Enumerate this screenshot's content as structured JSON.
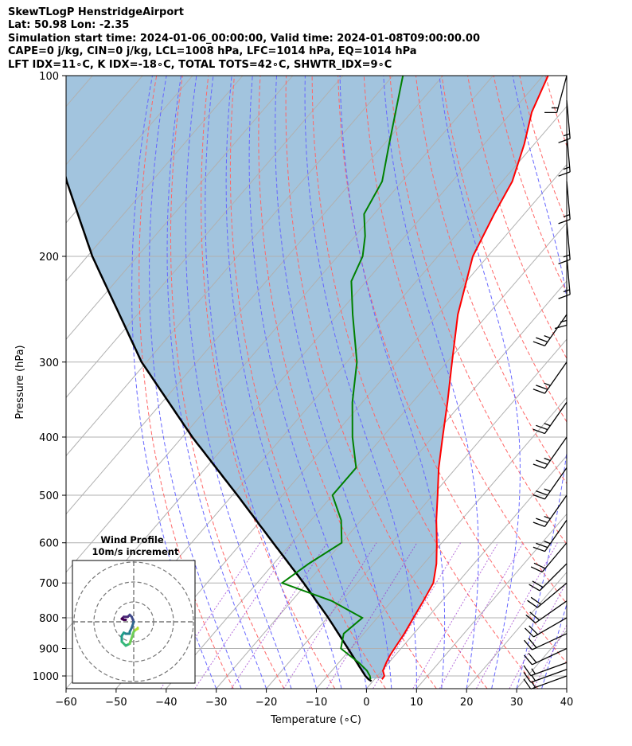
{
  "header": {
    "line1": "SkewTLogP HenstridgeAirport",
    "line2": "Lat: 50.98   Lon: -2.35",
    "line3": "Simulation start time: 2024-01-06_00:00:00, Valid time: 2024-01-08T09:00:00.00",
    "line4": "CAPE=0 j/kg, CIN=0 j/kg, LCL=1008 hPa, LFC=1014 hPa, EQ=1014 hPa",
    "line5": "LFT IDX=11∘C, K IDX=-18∘C, TOTAL TOTS=42∘C, SHWTR_IDX=9∘C"
  },
  "chart_data": {
    "type": "skewt",
    "xlabel": "Temperature (∘C)",
    "ylabel": "Pressure (hPa)",
    "xlim": [
      -60,
      40
    ],
    "ylim": [
      1050,
      100
    ],
    "x_ticks": [
      -60,
      -50,
      -40,
      -30,
      -20,
      -10,
      0,
      10,
      20,
      30,
      40
    ],
    "x_tick_labels": [
      "−60",
      "−50",
      "−40",
      "−30",
      "−20",
      "−10",
      "0",
      "10",
      "20",
      "30",
      "40"
    ],
    "y_ticks": [
      1000,
      900,
      800,
      700,
      600,
      500,
      400,
      300,
      200,
      100
    ],
    "y_tick_labels": [
      "1000",
      "900",
      "800",
      "700",
      "600",
      "500",
      "400",
      "300",
      "200",
      "100"
    ],
    "colors": {
      "temperature": "#ff0000",
      "dewpoint": "#008000",
      "parcel": "#000000",
      "fill": "#a2c4de",
      "dry_adiabat": "#ff6666",
      "moist_adiabat": "#6666ff",
      "mixing_ratio": "#9933cc",
      "isotherm": "#b0b0b0"
    },
    "temperature_profile": [
      [
        1013,
        1.5
      ],
      [
        1000,
        1.4
      ],
      [
        980,
        0.2
      ],
      [
        950,
        -0.5
      ],
      [
        925,
        -1.0
      ],
      [
        900,
        -1.3
      ],
      [
        850,
        -1.9
      ],
      [
        800,
        -2.8
      ],
      [
        750,
        -3.7
      ],
      [
        700,
        -4.8
      ],
      [
        650,
        -7.5
      ],
      [
        600,
        -11.0
      ],
      [
        550,
        -15.0
      ],
      [
        500,
        -19.0
      ],
      [
        450,
        -23.5
      ],
      [
        400,
        -28.0
      ],
      [
        350,
        -33.0
      ],
      [
        300,
        -39.0
      ],
      [
        250,
        -46.0
      ],
      [
        200,
        -53.0
      ],
      [
        170,
        -56.0
      ],
      [
        150,
        -58.0
      ],
      [
        130,
        -62.0
      ],
      [
        115,
        -66.0
      ],
      [
        100,
        -69.0
      ]
    ],
    "dewpoint_profile": [
      [
        1013,
        -0.8
      ],
      [
        1000,
        -1.5
      ],
      [
        980,
        -3.0
      ],
      [
        950,
        -6.0
      ],
      [
        925,
        -9.0
      ],
      [
        900,
        -12.0
      ],
      [
        850,
        -14.0
      ],
      [
        800,
        -13.0
      ],
      [
        750,
        -22.0
      ],
      [
        700,
        -35.0
      ],
      [
        650,
        -33.0
      ],
      [
        600,
        -30.0
      ],
      [
        550,
        -34.0
      ],
      [
        500,
        -40.0
      ],
      [
        450,
        -40.0
      ],
      [
        400,
        -46.0
      ],
      [
        350,
        -52.0
      ],
      [
        300,
        -58.0
      ],
      [
        250,
        -67.0
      ],
      [
        220,
        -73.0
      ],
      [
        200,
        -75.0
      ],
      [
        185,
        -78.0
      ],
      [
        170,
        -82.0
      ],
      [
        150,
        -84.0
      ],
      [
        130,
        -89.0
      ],
      [
        100,
        -98.0
      ]
    ],
    "parcel_profile": [
      [
        1020,
        -0.3
      ],
      [
        1013,
        -1.2
      ],
      [
        1000,
        -2.4
      ],
      [
        900,
        -10.6
      ],
      [
        800,
        -19.8
      ],
      [
        700,
        -30.7
      ],
      [
        600,
        -43.7
      ],
      [
        500,
        -59.0
      ],
      [
        400,
        -78.0
      ],
      [
        300,
        -101.0
      ],
      [
        200,
        -129.0
      ],
      [
        150,
        -147.0
      ],
      [
        100,
        -170.0
      ]
    ],
    "wind_barbs": [
      {
        "p": 1000,
        "speed_kt": 15,
        "dir": 250
      },
      {
        "p": 975,
        "speed_kt": 15,
        "dir": 250
      },
      {
        "p": 950,
        "speed_kt": 15,
        "dir": 250
      },
      {
        "p": 900,
        "speed_kt": 20,
        "dir": 245
      },
      {
        "p": 850,
        "speed_kt": 20,
        "dir": 245
      },
      {
        "p": 800,
        "speed_kt": 20,
        "dir": 240
      },
      {
        "p": 750,
        "speed_kt": 20,
        "dir": 235
      },
      {
        "p": 700,
        "speed_kt": 20,
        "dir": 230
      },
      {
        "p": 650,
        "speed_kt": 20,
        "dir": 225
      },
      {
        "p": 600,
        "speed_kt": 20,
        "dir": 220
      },
      {
        "p": 550,
        "speed_kt": 25,
        "dir": 215
      },
      {
        "p": 500,
        "speed_kt": 25,
        "dir": 215
      },
      {
        "p": 450,
        "speed_kt": 25,
        "dir": 215
      },
      {
        "p": 400,
        "speed_kt": 25,
        "dir": 215
      },
      {
        "p": 350,
        "speed_kt": 25,
        "dir": 215
      },
      {
        "p": 300,
        "speed_kt": 25,
        "dir": 215
      },
      {
        "p": 250,
        "speed_kt": 25,
        "dir": 215
      },
      {
        "p": 225,
        "speed_kt": 15,
        "dir": 180
      },
      {
        "p": 200,
        "speed_kt": 15,
        "dir": 175
      },
      {
        "p": 175,
        "speed_kt": 15,
        "dir": 175
      },
      {
        "p": 150,
        "speed_kt": 15,
        "dir": 175
      },
      {
        "p": 125,
        "speed_kt": 15,
        "dir": 175
      },
      {
        "p": 110,
        "speed_kt": 15,
        "dir": 175
      },
      {
        "p": 100,
        "speed_kt": 15,
        "dir": 195
      }
    ],
    "hodograph": {
      "title": "Wind Profile",
      "subtitle": "10m/s increment",
      "ring_increment_ms": 10,
      "points": [
        [
          -4,
          1
        ],
        [
          -5,
          1
        ],
        [
          -6,
          1.5
        ],
        [
          -5,
          2.5
        ],
        [
          -3,
          2.5
        ],
        [
          -2,
          3.5
        ],
        [
          -1,
          2.5
        ],
        [
          0,
          0
        ],
        [
          -1,
          -3
        ],
        [
          -2,
          -5
        ],
        [
          -2,
          -6
        ],
        [
          -4,
          -6
        ],
        [
          -5,
          -5.5
        ],
        [
          -6,
          -7
        ],
        [
          -6,
          -10
        ],
        [
          -4,
          -12
        ],
        [
          -2,
          -11
        ],
        [
          0,
          -5
        ],
        [
          1,
          -4
        ],
        [
          2,
          -3.5
        ],
        [
          2,
          -3
        ]
      ]
    }
  }
}
